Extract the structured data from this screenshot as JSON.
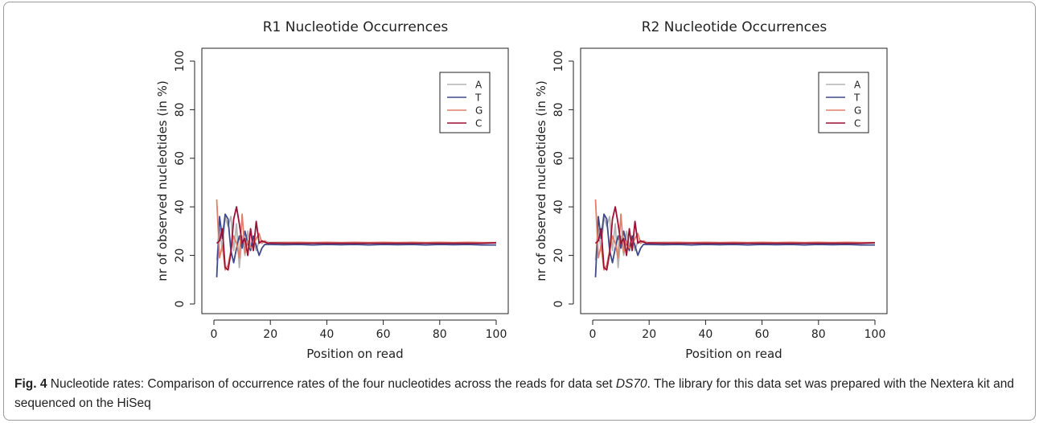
{
  "colors": {
    "A": "#b4b4b4",
    "T": "#3e4a8a",
    "G": "#e0806a",
    "C": "#9c1036"
  },
  "caption": {
    "label": "Fig. 4",
    "text_before_italic": " Nucleotide rates: Comparison of occurrence rates of the four nucleotides across the reads for data set ",
    "italic": "DS70",
    "text_after_italic": ". The library for this data set was prepared with the Nextera kit and sequenced on the HiSeq"
  },
  "chart_data": [
    {
      "type": "line",
      "title": "R1  Nucleotide Occurrences",
      "xlabel": "Position on read",
      "ylabel": "nr of observed nucleotides (in %)",
      "xlim": [
        0,
        100
      ],
      "ylim": [
        0,
        100
      ],
      "xticks": [
        0,
        20,
        40,
        60,
        80,
        100
      ],
      "yticks": [
        0,
        20,
        40,
        60,
        80,
        100
      ],
      "grid": false,
      "legend": "top-right",
      "x": [
        1,
        2,
        3,
        4,
        5,
        6,
        7,
        8,
        9,
        10,
        11,
        12,
        13,
        14,
        15,
        16,
        17,
        18,
        19,
        20,
        25,
        30,
        35,
        40,
        45,
        50,
        55,
        60,
        65,
        70,
        75,
        80,
        85,
        90,
        95,
        100
      ],
      "series": [
        {
          "name": "A",
          "values": [
            18,
            31,
            22,
            36,
            32,
            36,
            22,
            33,
            15,
            28,
            20,
            30,
            24,
            27,
            22,
            26,
            25,
            26,
            25.5,
            25.3,
            25.4,
            25.3,
            25.2,
            25.3,
            25.2,
            25.3,
            25.2,
            25.3,
            25.2,
            25.3,
            25.2,
            25.3,
            25.2,
            25.3,
            25.2,
            25.2
          ]
        },
        {
          "name": "T",
          "values": [
            11,
            36,
            27,
            37,
            35,
            22,
            17,
            23,
            28,
            23,
            30,
            25,
            22,
            28,
            24,
            20,
            23,
            24.5,
            24.5,
            24.5,
            24.4,
            24.5,
            24.3,
            24.5,
            24.4,
            24.5,
            24.3,
            24.5,
            24.4,
            24.5,
            24.3,
            24.5,
            24.4,
            24.5,
            24.3,
            24.3
          ]
        },
        {
          "name": "G",
          "values": [
            43,
            19,
            24,
            14,
            16,
            22,
            28,
            25,
            19,
            37,
            21,
            26,
            23,
            24,
            27,
            29,
            25,
            26,
            25,
            25.3,
            25.3,
            25.4,
            25.3,
            25.4,
            25.3,
            25.4,
            25.3,
            25.4,
            25.3,
            25.4,
            25.3,
            25.4,
            25.3,
            25.4,
            25.3,
            25.3
          ]
        },
        {
          "name": "C",
          "values": [
            25,
            26,
            31,
            15,
            14,
            21,
            35,
            40,
            33,
            25,
            27,
            20,
            31,
            22,
            34,
            25,
            26,
            25.5,
            25,
            25.1,
            25,
            25,
            25,
            25,
            25,
            25,
            25,
            25,
            25,
            25,
            25,
            25,
            25,
            25,
            25,
            25.2
          ]
        }
      ]
    },
    {
      "type": "line",
      "title": "R2  Nucleotide Occurrences",
      "xlabel": "Position on read",
      "ylabel": "nr of observed nucleotides (in %)",
      "xlim": [
        0,
        100
      ],
      "ylim": [
        0,
        100
      ],
      "xticks": [
        0,
        20,
        40,
        60,
        80,
        100
      ],
      "yticks": [
        0,
        20,
        40,
        60,
        80,
        100
      ],
      "grid": false,
      "legend": "top-right",
      "x": [
        1,
        2,
        3,
        4,
        5,
        6,
        7,
        8,
        9,
        10,
        11,
        12,
        13,
        14,
        15,
        16,
        17,
        18,
        19,
        20,
        25,
        30,
        35,
        40,
        45,
        50,
        55,
        60,
        65,
        70,
        75,
        80,
        85,
        90,
        95,
        100
      ],
      "series": [
        {
          "name": "A",
          "values": [
            18,
            31,
            22,
            36,
            32,
            36,
            22,
            33,
            15,
            28,
            20,
            30,
            24,
            27,
            22,
            26,
            25,
            26,
            25.5,
            25.3,
            25.4,
            25.3,
            25.2,
            25.3,
            25.2,
            25.3,
            25.2,
            25.3,
            25.2,
            25.3,
            25.2,
            25.3,
            25.2,
            25.3,
            25.2,
            25.2
          ]
        },
        {
          "name": "T",
          "values": [
            11,
            36,
            27,
            37,
            35,
            22,
            17,
            23,
            28,
            23,
            30,
            25,
            22,
            28,
            24,
            20,
            23,
            24.5,
            24.5,
            24.5,
            24.4,
            24.5,
            24.3,
            24.5,
            24.4,
            24.5,
            24.3,
            24.5,
            24.4,
            24.5,
            24.3,
            24.5,
            24.4,
            24.5,
            24.3,
            24.3
          ]
        },
        {
          "name": "G",
          "values": [
            43,
            19,
            24,
            14,
            16,
            22,
            28,
            25,
            19,
            37,
            21,
            26,
            23,
            24,
            27,
            29,
            25,
            26,
            25,
            25.3,
            25.3,
            25.4,
            25.3,
            25.4,
            25.3,
            25.4,
            25.3,
            25.4,
            25.3,
            25.4,
            25.3,
            25.4,
            25.3,
            25.4,
            25.3,
            25.3
          ]
        },
        {
          "name": "C",
          "values": [
            25,
            26,
            31,
            15,
            14,
            21,
            35,
            40,
            33,
            25,
            27,
            20,
            31,
            22,
            34,
            25,
            26,
            25.5,
            25,
            25.1,
            25,
            25,
            25,
            25,
            25,
            25,
            25,
            25,
            25,
            25,
            25,
            25,
            25,
            25,
            25,
            25.2
          ]
        }
      ]
    }
  ]
}
